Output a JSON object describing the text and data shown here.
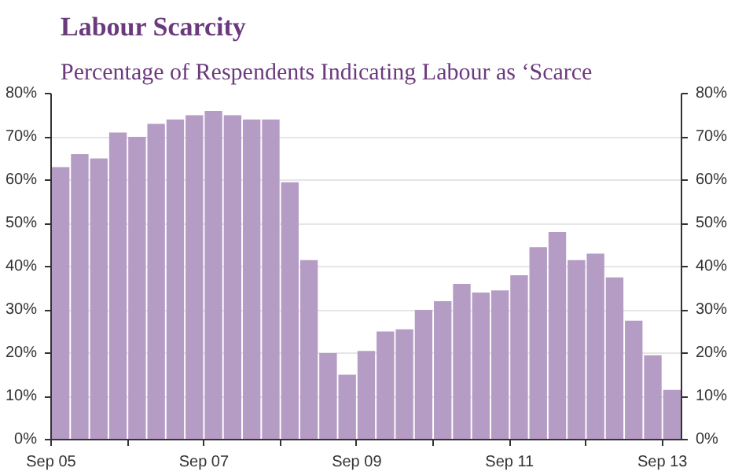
{
  "chart_data": {
    "type": "bar",
    "title": "Labour Scarcity",
    "subtitle": "Percentage of Respendents Indicating Labour as ‘Scarce",
    "categories": [
      "Sep 05",
      null,
      null,
      null,
      null,
      null,
      null,
      null,
      "Sep 07",
      null,
      null,
      null,
      null,
      null,
      null,
      null,
      "Sep 09",
      null,
      null,
      null,
      null,
      null,
      null,
      null,
      "Sep 11",
      null,
      null,
      null,
      null,
      null,
      null,
      null,
      "Sep 13"
    ],
    "values": [
      63,
      66,
      65,
      71,
      70,
      73,
      74,
      75,
      76,
      75,
      74,
      74,
      59.5,
      41.5,
      20,
      15,
      20.5,
      25,
      25.5,
      30,
      32,
      36,
      34,
      34.5,
      38,
      44.5,
      48,
      41.5,
      43,
      37.5,
      27.5,
      19.5,
      11.5
    ],
    "color": "#b59cc4",
    "ylim": [
      0,
      80
    ],
    "yticks": [
      {
        "value": 0,
        "label": "0%"
      },
      {
        "value": 10,
        "label": "10%"
      },
      {
        "value": 20,
        "label": "20%"
      },
      {
        "value": 30,
        "label": "30%"
      },
      {
        "value": 40,
        "label": "40%"
      },
      {
        "value": 50,
        "label": "50%"
      },
      {
        "value": 60,
        "label": "60%"
      },
      {
        "value": 70,
        "label": "70%"
      },
      {
        "value": 80,
        "label": "80%"
      }
    ],
    "y2lim": [
      0,
      80
    ],
    "y2ticks": [
      {
        "value": 0,
        "label": "0%"
      },
      {
        "value": 10,
        "label": "10%"
      },
      {
        "value": 20,
        "label": "20%"
      },
      {
        "value": 30,
        "label": "30%"
      },
      {
        "value": 40,
        "label": "40%"
      },
      {
        "value": 50,
        "label": "50%"
      },
      {
        "value": 60,
        "label": "60%"
      },
      {
        "value": 70,
        "label": "70%"
      },
      {
        "value": 80,
        "label": "80%"
      }
    ],
    "grid": "y"
  }
}
